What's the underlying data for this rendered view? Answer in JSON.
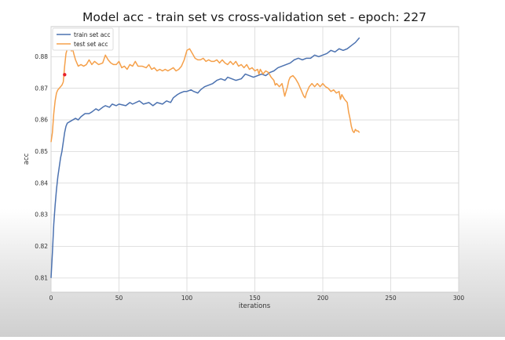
{
  "chart_data": {
    "type": "line",
    "title": "Model acc - train set vs cross-validation set - epoch: 227",
    "xlabel": "iterations",
    "ylabel": "acc",
    "xlim": [
      0,
      300
    ],
    "ylim": [
      0.8055,
      0.8895
    ],
    "x_ticks": [
      0,
      50,
      100,
      150,
      200,
      250,
      300
    ],
    "y_ticks": [
      0.81,
      0.82,
      0.83,
      0.84,
      0.85,
      0.86,
      0.87,
      0.88
    ],
    "grid": true,
    "legend_position": "top-left",
    "series": [
      {
        "name": "train set acc",
        "color": "#4c72b0",
        "points": [
          [
            0,
            0.81
          ],
          [
            1,
            0.818
          ],
          [
            2,
            0.827
          ],
          [
            3,
            0.833
          ],
          [
            4,
            0.838
          ],
          [
            5,
            0.842
          ],
          [
            6,
            0.845
          ],
          [
            7,
            0.848
          ],
          [
            8,
            0.85
          ],
          [
            9,
            0.853
          ],
          [
            10,
            0.856
          ],
          [
            11,
            0.858
          ],
          [
            12,
            0.859
          ],
          [
            14,
            0.8595
          ],
          [
            16,
            0.86
          ],
          [
            18,
            0.8605
          ],
          [
            20,
            0.86
          ],
          [
            22,
            0.861
          ],
          [
            25,
            0.862
          ],
          [
            28,
            0.862
          ],
          [
            30,
            0.8625
          ],
          [
            33,
            0.8635
          ],
          [
            35,
            0.863
          ],
          [
            38,
            0.864
          ],
          [
            40,
            0.8645
          ],
          [
            43,
            0.864
          ],
          [
            45,
            0.865
          ],
          [
            48,
            0.8645
          ],
          [
            50,
            0.865
          ],
          [
            55,
            0.8645
          ],
          [
            58,
            0.8655
          ],
          [
            60,
            0.865
          ],
          [
            65,
            0.866
          ],
          [
            68,
            0.865
          ],
          [
            72,
            0.8655
          ],
          [
            75,
            0.8645
          ],
          [
            78,
            0.8655
          ],
          [
            82,
            0.865
          ],
          [
            85,
            0.866
          ],
          [
            88,
            0.8655
          ],
          [
            90,
            0.867
          ],
          [
            93,
            0.868
          ],
          [
            95,
            0.8685
          ],
          [
            98,
            0.869
          ],
          [
            100,
            0.869
          ],
          [
            103,
            0.8695
          ],
          [
            105,
            0.869
          ],
          [
            108,
            0.8685
          ],
          [
            110,
            0.8695
          ],
          [
            113,
            0.8705
          ],
          [
            116,
            0.871
          ],
          [
            119,
            0.8715
          ],
          [
            122,
            0.8725
          ],
          [
            125,
            0.873
          ],
          [
            128,
            0.8725
          ],
          [
            130,
            0.8735
          ],
          [
            133,
            0.873
          ],
          [
            136,
            0.8725
          ],
          [
            140,
            0.873
          ],
          [
            143,
            0.8745
          ],
          [
            146,
            0.874
          ],
          [
            149,
            0.8735
          ],
          [
            152,
            0.874
          ],
          [
            155,
            0.8745
          ],
          [
            158,
            0.874
          ],
          [
            161,
            0.875
          ],
          [
            164,
            0.8755
          ],
          [
            167,
            0.8765
          ],
          [
            170,
            0.877
          ],
          [
            173,
            0.8775
          ],
          [
            176,
            0.878
          ],
          [
            179,
            0.879
          ],
          [
            182,
            0.8795
          ],
          [
            185,
            0.879
          ],
          [
            188,
            0.8795
          ],
          [
            191,
            0.8795
          ],
          [
            194,
            0.8805
          ],
          [
            197,
            0.88
          ],
          [
            200,
            0.8805
          ],
          [
            203,
            0.881
          ],
          [
            206,
            0.882
          ],
          [
            209,
            0.8815
          ],
          [
            212,
            0.8825
          ],
          [
            215,
            0.882
          ],
          [
            218,
            0.8825
          ],
          [
            221,
            0.8835
          ],
          [
            224,
            0.8845
          ],
          [
            227,
            0.886
          ]
        ]
      },
      {
        "name": "test set acc",
        "color": "#f5a04a",
        "points": [
          [
            0,
            0.853
          ],
          [
            1,
            0.856
          ],
          [
            2,
            0.862
          ],
          [
            3,
            0.866
          ],
          [
            4,
            0.8685
          ],
          [
            5,
            0.8695
          ],
          [
            6,
            0.87
          ],
          [
            7,
            0.8705
          ],
          [
            8,
            0.871
          ],
          [
            9,
            0.872
          ],
          [
            10,
            0.877
          ],
          [
            11,
            0.881
          ],
          [
            12,
            0.8825
          ],
          [
            13,
            0.8835
          ],
          [
            14,
            0.8825
          ],
          [
            15,
            0.8818
          ],
          [
            16,
            0.8822
          ],
          [
            17,
            0.8805
          ],
          [
            18,
            0.879
          ],
          [
            20,
            0.877
          ],
          [
            22,
            0.8775
          ],
          [
            24,
            0.877
          ],
          [
            26,
            0.8775
          ],
          [
            28,
            0.879
          ],
          [
            30,
            0.8775
          ],
          [
            32,
            0.8785
          ],
          [
            35,
            0.8775
          ],
          [
            38,
            0.878
          ],
          [
            40,
            0.8805
          ],
          [
            42,
            0.879
          ],
          [
            44,
            0.878
          ],
          [
            46,
            0.8775
          ],
          [
            48,
            0.8775
          ],
          [
            50,
            0.8785
          ],
          [
            52,
            0.8765
          ],
          [
            54,
            0.877
          ],
          [
            56,
            0.876
          ],
          [
            58,
            0.8775
          ],
          [
            60,
            0.877
          ],
          [
            62,
            0.8785
          ],
          [
            64,
            0.877
          ],
          [
            67,
            0.877
          ],
          [
            70,
            0.8765
          ],
          [
            72,
            0.8775
          ],
          [
            74,
            0.876
          ],
          [
            76,
            0.8765
          ],
          [
            78,
            0.8755
          ],
          [
            80,
            0.876
          ],
          [
            82,
            0.8755
          ],
          [
            84,
            0.876
          ],
          [
            86,
            0.8755
          ],
          [
            88,
            0.876
          ],
          [
            90,
            0.8765
          ],
          [
            92,
            0.8755
          ],
          [
            94,
            0.876
          ],
          [
            96,
            0.877
          ],
          [
            98,
            0.879
          ],
          [
            100,
            0.882
          ],
          [
            102,
            0.8825
          ],
          [
            104,
            0.881
          ],
          [
            106,
            0.8795
          ],
          [
            108,
            0.879
          ],
          [
            110,
            0.879
          ],
          [
            112,
            0.8795
          ],
          [
            114,
            0.8785
          ],
          [
            116,
            0.879
          ],
          [
            118,
            0.8785
          ],
          [
            120,
            0.8785
          ],
          [
            122,
            0.879
          ],
          [
            124,
            0.878
          ],
          [
            126,
            0.879
          ],
          [
            128,
            0.878
          ],
          [
            130,
            0.8775
          ],
          [
            132,
            0.8785
          ],
          [
            134,
            0.8775
          ],
          [
            136,
            0.8785
          ],
          [
            138,
            0.877
          ],
          [
            140,
            0.8775
          ],
          [
            142,
            0.8765
          ],
          [
            144,
            0.8775
          ],
          [
            146,
            0.876
          ],
          [
            148,
            0.8765
          ],
          [
            150,
            0.8755
          ],
          [
            152,
            0.876
          ],
          [
            153,
            0.8745
          ],
          [
            154,
            0.876
          ],
          [
            156,
            0.8745
          ],
          [
            158,
            0.8755
          ],
          [
            160,
            0.875
          ],
          [
            162,
            0.8735
          ],
          [
            164,
            0.8725
          ],
          [
            165,
            0.871
          ],
          [
            166,
            0.8715
          ],
          [
            168,
            0.8705
          ],
          [
            170,
            0.8715
          ],
          [
            171,
            0.8695
          ],
          [
            172,
            0.8675
          ],
          [
            173,
            0.869
          ],
          [
            174,
            0.8705
          ],
          [
            175,
            0.8725
          ],
          [
            176,
            0.8735
          ],
          [
            178,
            0.874
          ],
          [
            180,
            0.873
          ],
          [
            182,
            0.8715
          ],
          [
            184,
            0.8695
          ],
          [
            186,
            0.8675
          ],
          [
            187,
            0.867
          ],
          [
            188,
            0.8685
          ],
          [
            190,
            0.8705
          ],
          [
            192,
            0.8715
          ],
          [
            194,
            0.8705
          ],
          [
            196,
            0.8715
          ],
          [
            198,
            0.8705
          ],
          [
            200,
            0.8715
          ],
          [
            202,
            0.8705
          ],
          [
            204,
            0.87
          ],
          [
            206,
            0.869
          ],
          [
            208,
            0.8695
          ],
          [
            210,
            0.8685
          ],
          [
            212,
            0.869
          ],
          [
            213,
            0.8665
          ],
          [
            214,
            0.868
          ],
          [
            216,
            0.8665
          ],
          [
            218,
            0.8655
          ],
          [
            219,
            0.8625
          ],
          [
            220,
            0.8605
          ],
          [
            221,
            0.858
          ],
          [
            222,
            0.8565
          ],
          [
            223,
            0.856
          ],
          [
            224,
            0.857
          ],
          [
            225,
            0.8565
          ],
          [
            226,
            0.8565
          ],
          [
            227,
            0.856
          ]
        ]
      }
    ],
    "marker": {
      "x": 10,
      "y": 0.8743,
      "color": "#e8202a"
    }
  }
}
